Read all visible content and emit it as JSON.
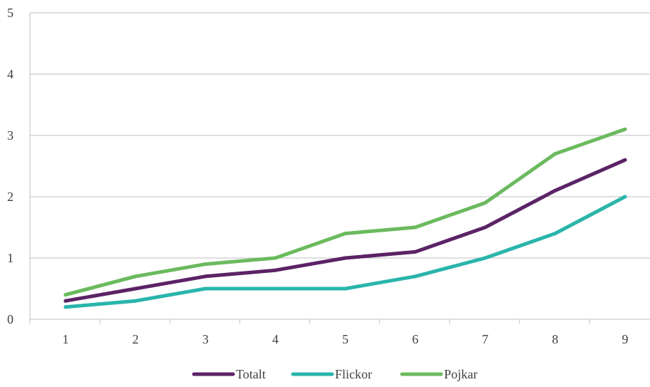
{
  "chart_data": {
    "type": "line",
    "title": "",
    "xlabel": "",
    "ylabel": "",
    "categories": [
      "1",
      "2",
      "3",
      "4",
      "5",
      "6",
      "7",
      "8",
      "9"
    ],
    "ylim": [
      0,
      5
    ],
    "yticks": [
      0,
      1,
      2,
      3,
      4,
      5
    ],
    "grid": true,
    "legend_position": "bottom",
    "series": [
      {
        "name": "Totalt",
        "color": "#5b2366",
        "values": [
          0.3,
          0.5,
          0.7,
          0.8,
          1.0,
          1.1,
          1.5,
          2.1,
          2.6
        ]
      },
      {
        "name": "Flickor",
        "color": "#2ab5ab",
        "values": [
          0.2,
          0.3,
          0.5,
          0.5,
          0.5,
          0.7,
          1.0,
          1.4,
          2.0
        ]
      },
      {
        "name": "Pojkar",
        "color": "#6bba5e",
        "values": [
          0.4,
          0.7,
          0.9,
          1.0,
          1.4,
          1.5,
          1.9,
          2.7,
          3.1
        ]
      }
    ]
  }
}
